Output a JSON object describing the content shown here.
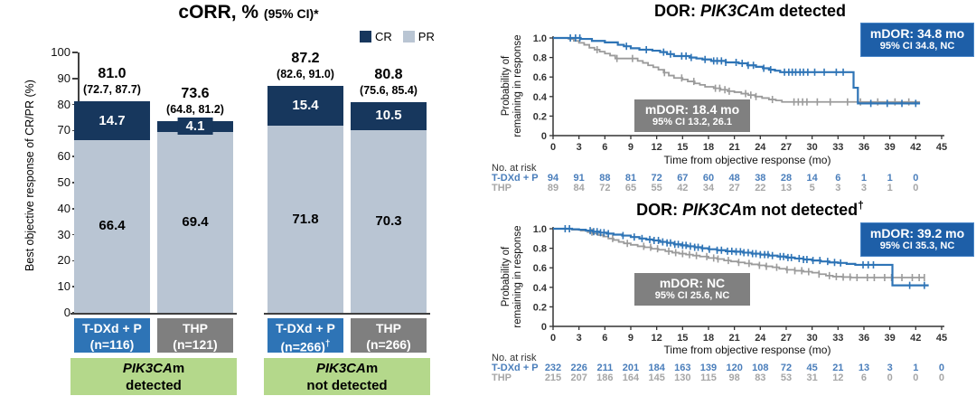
{
  "colors": {
    "cr_navy": "#17375D",
    "pr_light": "#B9C5D3",
    "arm_blue": "#2E74B6",
    "arm_gray": "#7F7F7F",
    "box_blue": "#1E5FA8",
    "box_gray": "#808080",
    "curve_blue": "#2E74B6",
    "curve_gray": "#9B9B9B",
    "risk_blue": "#4A7EBB",
    "risk_gray": "#A6A6A6",
    "group_green": "#B4D88B"
  },
  "chart_data": [
    {
      "id": "corr_bar",
      "type": "bar",
      "title": "cORR, %",
      "title_note": "(95% CI)*",
      "ylabel": "Best objective response of CR/PR (%)",
      "ylim": [
        0,
        100
      ],
      "y_ticks": [
        0,
        10,
        20,
        30,
        40,
        50,
        60,
        70,
        80,
        90,
        100
      ],
      "legend": [
        {
          "label": "CR",
          "color": "#17375D"
        },
        {
          "label": "PR",
          "color": "#B9C5D3"
        }
      ],
      "groups": [
        {
          "gene": "PIK3CA",
          "gene_suffix": "m",
          "status": "detected",
          "bars": [
            {
              "arm": "T-DXd + P",
              "n_label": "(n=116)",
              "n_dagger": "",
              "arm_color": "#2E74B6",
              "total_label": "81.0",
              "ci_label": "(72.7, 87.7)",
              "cr": 14.7,
              "pr": 66.4,
              "cr_label": "14.7",
              "pr_label": "66.4"
            },
            {
              "arm": "THP",
              "n_label": "(n=121)",
              "n_dagger": "",
              "arm_color": "#7F7F7F",
              "total_label": "73.6",
              "ci_label": "(64.8, 81.2)",
              "cr": 4.1,
              "pr": 69.4,
              "cr_label": "4.1",
              "pr_label": "69.4"
            }
          ]
        },
        {
          "gene": "PIK3CA",
          "gene_suffix": "m",
          "status": "not detected",
          "bars": [
            {
              "arm": "T-DXd + P",
              "n_label": "(n=266)",
              "n_dagger": "†",
              "arm_color": "#2E74B6",
              "total_label": "87.2",
              "ci_label": "(82.6, 91.0)",
              "cr": 15.4,
              "pr": 71.8,
              "cr_label": "15.4",
              "pr_label": "71.8"
            },
            {
              "arm": "THP",
              "n_label": "(n=266)",
              "n_dagger": "",
              "arm_color": "#7F7F7F",
              "total_label": "80.8",
              "ci_label": "(75.6, 85.4)",
              "cr": 10.5,
              "pr": 70.3,
              "cr_label": "10.5",
              "pr_label": "70.3"
            }
          ]
        }
      ]
    },
    {
      "id": "dor_detected",
      "type": "line",
      "title": {
        "prefix": "DOR: ",
        "gene": "PIK3CA",
        "suffix": "m detected",
        "dagger": ""
      },
      "ylabel": [
        "Probability of",
        "remaining in response"
      ],
      "xlabel": "Time from objective response (mo)",
      "xlim": [
        0,
        45
      ],
      "ylim": [
        0,
        1
      ],
      "x_ticks": [
        0,
        3,
        6,
        9,
        12,
        15,
        18,
        21,
        24,
        27,
        30,
        33,
        36,
        39,
        42,
        45
      ],
      "y_tick_labels": [
        "0",
        "0.2",
        "0.4",
        "0.6",
        "0.8",
        "1.0"
      ],
      "annotation_blue": {
        "line1": "mDOR: 34.8 mo",
        "line2": "95% CI 34.8, NC"
      },
      "annotation_gray": {
        "line1": "mDOR: 18.4 mo",
        "line2": "95% CI 13.2, 26.1"
      },
      "risk_label": "No. at risk",
      "series": [
        {
          "name": "T-DXd + P",
          "color": "#2E74B6",
          "risk_color": "#4A7EBB",
          "steps": [
            [
              0,
              1.0
            ],
            [
              3.2,
              0.99
            ],
            [
              4.5,
              0.97
            ],
            [
              6,
              0.955
            ],
            [
              7.5,
              0.93
            ],
            [
              8.2,
              0.915
            ],
            [
              9,
              0.895
            ],
            [
              10,
              0.88
            ],
            [
              11.5,
              0.87
            ],
            [
              12.4,
              0.855
            ],
            [
              13.2,
              0.835
            ],
            [
              14,
              0.815
            ],
            [
              15.8,
              0.8
            ],
            [
              16.6,
              0.79
            ],
            [
              17.3,
              0.78
            ],
            [
              18.3,
              0.765
            ],
            [
              20,
              0.75
            ],
            [
              21.5,
              0.74
            ],
            [
              22.5,
              0.72
            ],
            [
              23.5,
              0.705
            ],
            [
              24.3,
              0.69
            ],
            [
              25,
              0.675
            ],
            [
              25.7,
              0.665
            ],
            [
              26.3,
              0.65
            ],
            [
              34.8,
              0.49
            ],
            [
              35.3,
              0.33
            ],
            [
              42.5,
              0.33
            ]
          ],
          "censors": [
            2.0,
            2.6,
            3.1,
            8.5,
            10.8,
            12.8,
            13.6,
            14.9,
            15.4,
            16.0,
            17.6,
            18.6,
            19.0,
            19.5,
            20.0,
            21.2,
            21.9,
            22.6,
            23.2,
            24.4,
            25.2,
            26.8,
            27.3,
            27.7,
            28.1,
            28.6,
            29.0,
            29.5,
            30.3,
            31.4,
            32.8,
            33.6,
            36.8,
            38.7,
            40.4,
            42.0
          ],
          "at_risk": [
            94,
            91,
            88,
            81,
            72,
            67,
            60,
            48,
            38,
            28,
            14,
            6,
            1,
            1,
            0
          ]
        },
        {
          "name": "THP",
          "color": "#9B9B9B",
          "risk_color": "#A6A6A6",
          "steps": [
            [
              0,
              1.0
            ],
            [
              1.8,
              0.99
            ],
            [
              2.4,
              0.97
            ],
            [
              3,
              0.95
            ],
            [
              3.6,
              0.93
            ],
            [
              4.2,
              0.9
            ],
            [
              4.8,
              0.88
            ],
            [
              5.4,
              0.86
            ],
            [
              6,
              0.84
            ],
            [
              6.6,
              0.82
            ],
            [
              7.2,
              0.79
            ],
            [
              9.8,
              0.765
            ],
            [
              10.4,
              0.745
            ],
            [
              11,
              0.72
            ],
            [
              11.6,
              0.7
            ],
            [
              12.2,
              0.675
            ],
            [
              12.8,
              0.645
            ],
            [
              13.4,
              0.615
            ],
            [
              14,
              0.59
            ],
            [
              15,
              0.575
            ],
            [
              15.6,
              0.555
            ],
            [
              16.4,
              0.535
            ],
            [
              17,
              0.52
            ],
            [
              17.6,
              0.5
            ],
            [
              18.6,
              0.485
            ],
            [
              19.4,
              0.47
            ],
            [
              20.2,
              0.455
            ],
            [
              21,
              0.445
            ],
            [
              21.8,
              0.43
            ],
            [
              22.6,
              0.415
            ],
            [
              23.4,
              0.4
            ],
            [
              24.2,
              0.385
            ],
            [
              25,
              0.37
            ],
            [
              25.8,
              0.36
            ],
            [
              26.5,
              0.345
            ],
            [
              42.5,
              0.345
            ]
          ],
          "censors": [
            5.1,
            7.4,
            9.2,
            12.9,
            14.9,
            16.3,
            18.8,
            19.3,
            19.9,
            20.4,
            22.3,
            22.9,
            23.5,
            25.4,
            27.9,
            28.4,
            28.9,
            29.4,
            30.6,
            32.1,
            34.1,
            35.6,
            37.6,
            39.6,
            41.2
          ],
          "at_risk": [
            89,
            84,
            72,
            65,
            55,
            42,
            34,
            27,
            22,
            13,
            5,
            3,
            3,
            1,
            0
          ]
        }
      ]
    },
    {
      "id": "dor_not_detected",
      "type": "line",
      "title": {
        "prefix": "DOR: ",
        "gene": "PIK3CA",
        "suffix": "m not detected",
        "dagger": "†"
      },
      "ylabel": [
        "Probability of",
        "remaining in response"
      ],
      "xlabel": "Time from objective response (mo)",
      "xlim": [
        0,
        45
      ],
      "ylim": [
        0,
        1
      ],
      "x_ticks": [
        0,
        3,
        6,
        9,
        12,
        15,
        18,
        21,
        24,
        27,
        30,
        33,
        36,
        39,
        42,
        45
      ],
      "y_tick_labels": [
        "0",
        "0.2",
        "0.4",
        "0.6",
        "0.8",
        "1.0"
      ],
      "annotation_blue": {
        "line1": "mDOR: 39.2 mo",
        "line2": "95% CI 35.3, NC"
      },
      "annotation_gray": {
        "line1": "mDOR: NC",
        "line2": "95% CI 25.6, NC"
      },
      "risk_label": "No. at risk",
      "series": [
        {
          "name": "T-DXd + P",
          "color": "#2E74B6",
          "risk_color": "#4A7EBB",
          "steps": [
            [
              0,
              1.0
            ],
            [
              2.2,
              0.995
            ],
            [
              3,
              0.99
            ],
            [
              3.8,
              0.98
            ],
            [
              4.6,
              0.97
            ],
            [
              5.4,
              0.96
            ],
            [
              6.2,
              0.95
            ],
            [
              7,
              0.94
            ],
            [
              8,
              0.93
            ],
            [
              9,
              0.915
            ],
            [
              10,
              0.9
            ],
            [
              10.8,
              0.89
            ],
            [
              11.6,
              0.88
            ],
            [
              12.4,
              0.865
            ],
            [
              13.2,
              0.855
            ],
            [
              14,
              0.84
            ],
            [
              14.8,
              0.83
            ],
            [
              15.6,
              0.82
            ],
            [
              16.4,
              0.81
            ],
            [
              17.2,
              0.8
            ],
            [
              18,
              0.79
            ],
            [
              19,
              0.78
            ],
            [
              20,
              0.77
            ],
            [
              21,
              0.765
            ],
            [
              22,
              0.755
            ],
            [
              23,
              0.745
            ],
            [
              24,
              0.735
            ],
            [
              25,
              0.725
            ],
            [
              26,
              0.715
            ],
            [
              27,
              0.705
            ],
            [
              28,
              0.695
            ],
            [
              29,
              0.685
            ],
            [
              30,
              0.675
            ],
            [
              31,
              0.665
            ],
            [
              32,
              0.655
            ],
            [
              33,
              0.65
            ],
            [
              34,
              0.64
            ],
            [
              35,
              0.63
            ],
            [
              39.3,
              0.42
            ],
            [
              43.5,
              0.42
            ]
          ],
          "censors": [
            1.4,
            1.9,
            4.3,
            4.7,
            5.1,
            5.5,
            5.9,
            6.4,
            8.1,
            9.4,
            10.3,
            11.2,
            11.7,
            12.2,
            12.7,
            13.2,
            13.6,
            14.1,
            14.5,
            15.0,
            15.4,
            15.9,
            16.4,
            16.8,
            17.3,
            18.1,
            19.0,
            19.5,
            20.2,
            20.7,
            21.2,
            21.7,
            22.1,
            22.6,
            23.1,
            23.5,
            24.0,
            24.5,
            24.9,
            25.4,
            26.3,
            26.7,
            27.2,
            27.6,
            28.5,
            29.0,
            29.4,
            30.1,
            30.9,
            31.8,
            32.6,
            33.3,
            35.9,
            36.5,
            37.1,
            41.3,
            43.0
          ],
          "at_risk": [
            232,
            226,
            211,
            201,
            184,
            163,
            139,
            120,
            108,
            72,
            45,
            21,
            13,
            3,
            1,
            0
          ]
        },
        {
          "name": "THP",
          "color": "#9B9B9B",
          "risk_color": "#A6A6A6",
          "steps": [
            [
              0,
              1.0
            ],
            [
              2.2,
              0.99
            ],
            [
              3.2,
              0.98
            ],
            [
              4,
              0.965
            ],
            [
              4.6,
              0.95
            ],
            [
              5.2,
              0.935
            ],
            [
              5.8,
              0.92
            ],
            [
              6.4,
              0.9
            ],
            [
              7,
              0.885
            ],
            [
              7.6,
              0.865
            ],
            [
              8.2,
              0.85
            ],
            [
              9,
              0.835
            ],
            [
              9.8,
              0.82
            ],
            [
              10.6,
              0.81
            ],
            [
              11.4,
              0.795
            ],
            [
              12.2,
              0.785
            ],
            [
              13,
              0.77
            ],
            [
              13.8,
              0.755
            ],
            [
              14.6,
              0.745
            ],
            [
              15.4,
              0.735
            ],
            [
              16.2,
              0.725
            ],
            [
              17,
              0.715
            ],
            [
              18,
              0.7
            ],
            [
              19,
              0.69
            ],
            [
              19.8,
              0.675
            ],
            [
              20.6,
              0.665
            ],
            [
              21.4,
              0.655
            ],
            [
              22.2,
              0.645
            ],
            [
              23,
              0.635
            ],
            [
              23.8,
              0.625
            ],
            [
              24.6,
              0.615
            ],
            [
              25.4,
              0.605
            ],
            [
              26.2,
              0.59
            ],
            [
              27,
              0.58
            ],
            [
              28,
              0.57
            ],
            [
              29,
              0.56
            ],
            [
              30,
              0.55
            ],
            [
              30.8,
              0.535
            ],
            [
              31.6,
              0.52
            ],
            [
              32.4,
              0.51
            ],
            [
              33.5,
              0.505
            ],
            [
              34.5,
              0.5
            ],
            [
              43,
              0.5
            ]
          ],
          "censors": [
            4.5,
            6.9,
            8.6,
            10.5,
            11.3,
            12.1,
            13.4,
            14.2,
            15.0,
            15.8,
            16.6,
            17.8,
            18.6,
            19.1,
            20.3,
            21.5,
            22.7,
            23.9,
            24.7,
            25.9,
            27.1,
            28.0,
            28.8,
            29.6,
            30.8,
            32.0,
            32.8,
            33.6,
            34.4,
            35.2,
            36.4,
            37.2,
            38.4,
            39.2,
            40.4,
            41.6,
            42.4,
            43.0
          ],
          "at_risk": [
            215,
            207,
            186,
            164,
            145,
            130,
            115,
            98,
            83,
            53,
            31,
            12,
            6,
            0,
            0,
            0
          ]
        }
      ]
    }
  ]
}
